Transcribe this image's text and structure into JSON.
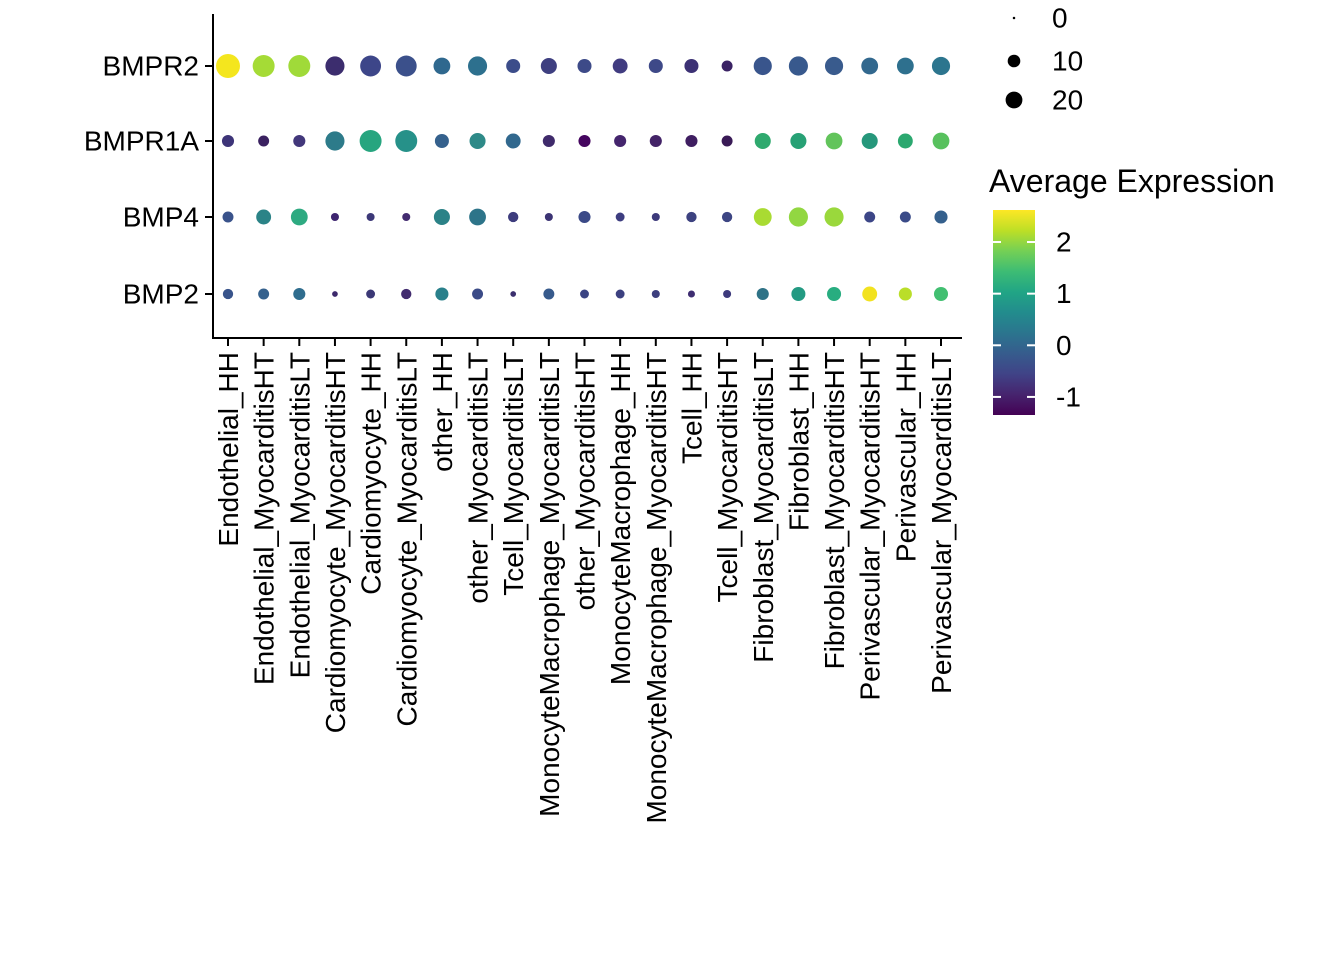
{
  "figure": {
    "background": "#ffffff",
    "text_color": "#000000"
  },
  "chart_data": {
    "type": "scatter",
    "subtype": "seurat-dotplot",
    "title": "",
    "legend_position": "right",
    "grid": false,
    "x_axis": {
      "label": "",
      "categories": [
        "Endothelial_HH",
        "Endothelial_MyocarditisHT",
        "Endothelial_MyocarditisLT",
        "Cardiomyocyte_MyocarditisHT",
        "Cardiomyocyte_HH",
        "Cardiomyocyte_MyocarditisLT",
        "other_HH",
        "other_MyocarditisLT",
        "Tcell_MyocarditisLT",
        "MonocyteMacrophage_MyocarditisLT",
        "other_MyocarditisHT",
        "MonocyteMacrophage_HH",
        "MonocyteMacrophage_MyocarditisHT",
        "Tcell_HH",
        "Tcell_MyocarditisHT",
        "Fibroblast_MyocarditisLT",
        "Fibroblast_HH",
        "Fibroblast_MyocarditisHT",
        "Perivascular_MyocarditisHT",
        "Perivascular_HH",
        "Perivascular_MyocarditisLT"
      ]
    },
    "y_axis": {
      "label": "",
      "genes": [
        "BMPR2",
        "BMPR1A",
        "BMP4",
        "BMP2"
      ]
    },
    "series": [
      {
        "gene": "BMPR2",
        "percent_expressed": [
          45,
          37,
          37,
          27,
          33,
          33,
          20,
          27,
          13,
          18,
          13,
          15,
          13,
          13,
          7,
          24,
          27,
          24,
          20,
          20,
          24
        ],
        "avg_expression_est": [
          2.45,
          1.9,
          1.9,
          -0.75,
          -0.35,
          -0.25,
          0.1,
          0.2,
          -0.3,
          -0.5,
          -0.35,
          -0.55,
          -0.35,
          -0.7,
          -0.95,
          -0.2,
          -0.15,
          -0.15,
          0.1,
          0.2,
          0.3
        ],
        "dot_colors": [
          "#f4e61e",
          "#a5db36",
          "#a0da39",
          "#3c2d6e",
          "#3d4689",
          "#3b508b",
          "#2f688e",
          "#2d708e",
          "#3c4d8a",
          "#3e3f80",
          "#3d4a88",
          "#413c80",
          "#3e4988",
          "#3c3174",
          "#3a2264",
          "#39558c",
          "#38598d",
          "#395b8d",
          "#32688e",
          "#2e708e",
          "#2c758e"
        ]
      },
      {
        "gene": "BMPR1A",
        "percent_expressed": [
          9,
          7,
          9,
          27,
          37,
          37,
          13,
          18,
          15,
          9,
          9,
          9,
          9,
          9,
          7,
          18,
          18,
          20,
          18,
          15,
          20
        ],
        "avg_expression_est": [
          -0.65,
          -1.0,
          -0.6,
          0.35,
          0.95,
          0.65,
          0.0,
          0.55,
          0.1,
          -0.8,
          -1.3,
          -0.9,
          -0.95,
          -1.05,
          -1.15,
          1.1,
          0.9,
          1.5,
          0.75,
          1.05,
          1.45
        ],
        "dot_colors": [
          "#3d3478",
          "#3a2160",
          "#42377b",
          "#2d7b8a",
          "#27a57f",
          "#269189",
          "#35618d",
          "#2e8a88",
          "#31688e",
          "#3f2a6b",
          "#45055f",
          "#44256d",
          "#432367",
          "#3f1e61",
          "#391a56",
          "#2fa96e",
          "#27a175",
          "#62c45b",
          "#26977b",
          "#2ba86f",
          "#58c15e"
        ]
      },
      {
        "gene": "BMP4",
        "percent_expressed": [
          7,
          15,
          20,
          3,
          3,
          3,
          18,
          20,
          6,
          3,
          9,
          4,
          3,
          6,
          6,
          23,
          27,
          27,
          7,
          7,
          11
        ],
        "avg_expression_est": [
          -0.2,
          0.45,
          1.05,
          -0.9,
          -0.6,
          -0.8,
          0.45,
          0.25,
          -0.55,
          -0.65,
          -0.3,
          -0.5,
          -0.55,
          -0.45,
          -0.4,
          1.95,
          1.8,
          1.85,
          -0.35,
          -0.3,
          -0.05
        ],
        "dot_colors": [
          "#3a538b",
          "#2b8387",
          "#2eaa81",
          "#3e2570",
          "#3c3878",
          "#432c70",
          "#2b8287",
          "#2d7489",
          "#3d3c7d",
          "#3c3474",
          "#3b4a87",
          "#3d3d80",
          "#3d3a7b",
          "#3d4280",
          "#3d4583",
          "#a9db32",
          "#92d741",
          "#9ad83c",
          "#3c4687",
          "#3a4b88",
          "#35608d"
        ]
      },
      {
        "gene": "BMP2",
        "percent_expressed": [
          6,
          7,
          9,
          1,
          4,
          6,
          11,
          7,
          1,
          7,
          4,
          4,
          3,
          2,
          3,
          9,
          13,
          13,
          15,
          11,
          13
        ],
        "avg_expression_est": [
          -0.2,
          0.0,
          0.2,
          -0.85,
          -0.6,
          -0.8,
          0.4,
          -0.3,
          -0.75,
          -0.1,
          -0.4,
          -0.45,
          -0.5,
          -0.8,
          -0.55,
          0.25,
          0.8,
          1.1,
          2.4,
          2.0,
          1.4
        ],
        "dot_colors": [
          "#39548b",
          "#35618d",
          "#2f6d8e",
          "#3d296c",
          "#3b3876",
          "#422c6f",
          "#29808b",
          "#3b4b87",
          "#3b2f6e",
          "#375a8c",
          "#3b4483",
          "#3c4080",
          "#3d3f7e",
          "#3e2d71",
          "#3d3a7c",
          "#2e7286",
          "#239a82",
          "#28ad80",
          "#f2e21f",
          "#bade29",
          "#42bf71"
        ]
      }
    ],
    "size_legend": {
      "values": [
        0,
        10,
        20
      ]
    },
    "color_legend": {
      "title": "Average Expression",
      "ticks": [
        2,
        1,
        0,
        -1
      ],
      "value_range": [
        -1.35,
        2.62
      ],
      "gradient_top_to_bottom": [
        "#fde725",
        "#bddf26",
        "#74d055",
        "#3dbc74",
        "#21a585",
        "#228c8d",
        "#2b758e",
        "#365c8d",
        "#404387",
        "#46246e",
        "#440154"
      ]
    }
  }
}
